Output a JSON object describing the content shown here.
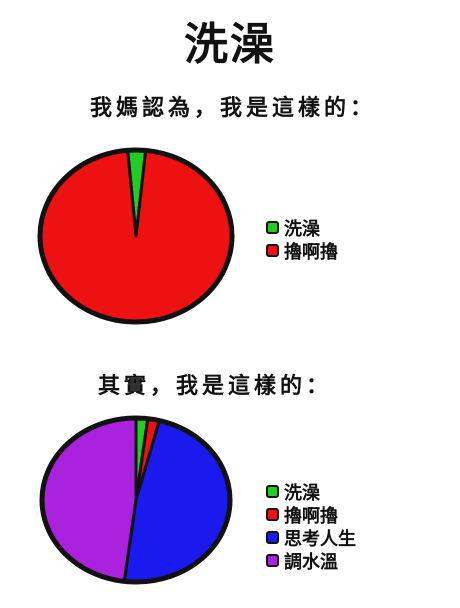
{
  "title": "洗澡",
  "chart_data": [
    {
      "type": "pie",
      "title": "我媽認為，我是這樣的：",
      "categories": [
        "洗澡",
        "擼啊擼"
      ],
      "values": [
        3,
        97
      ],
      "colors": [
        "#22cc22",
        "#ee1111"
      ],
      "start_angle_deg": -5,
      "legend": "right"
    },
    {
      "type": "pie",
      "title": "其實，我是這樣的：",
      "categories": [
        "洗澡",
        "擼啊擼",
        "思考人生",
        "調水溫"
      ],
      "values": [
        2,
        2,
        48,
        48
      ],
      "colors": [
        "#22cc22",
        "#ee1111",
        "#1a1aee",
        "#aa22dd"
      ],
      "start_angle_deg": 0,
      "legend": "right"
    }
  ]
}
